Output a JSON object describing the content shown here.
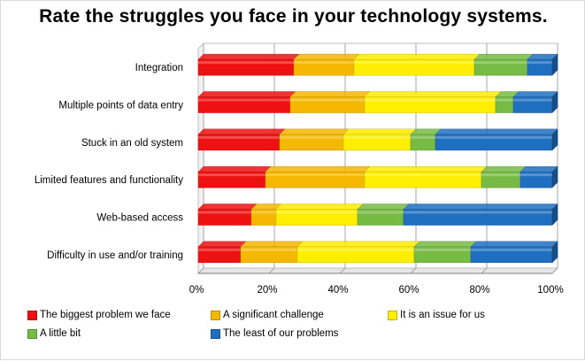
{
  "chart_data": {
    "type": "bar",
    "orientation": "horizontal",
    "stacked": "percent",
    "title": "Rate the struggles you face in your technology systems.",
    "categories": [
      "Integration",
      "Multiple points of data entry",
      "Stuck in an old system",
      "Limited features and functionality",
      "Web-based access",
      "Difficulty in use and/or training"
    ],
    "series": [
      {
        "name": "The biggest problem we face",
        "color": "#ee1111",
        "values": [
          27,
          26,
          23,
          19,
          15,
          12
        ]
      },
      {
        "name": "A significant challenge",
        "color": "#f5b800",
        "values": [
          17,
          21,
          18,
          28,
          7,
          16
        ]
      },
      {
        "name": "It is an issue for us",
        "color": "#ffee00",
        "values": [
          34,
          37,
          19,
          33,
          23,
          33
        ]
      },
      {
        "name": "A little bit",
        "color": "#77bb44",
        "values": [
          15,
          5,
          7,
          11,
          13,
          16
        ]
      },
      {
        "name": "The least of our problems",
        "color": "#1f6fc1",
        "values": [
          7,
          11,
          33,
          9,
          42,
          23
        ]
      }
    ],
    "xlim": [
      0,
      100
    ],
    "x_ticks": [
      "0%",
      "20%",
      "40%",
      "60%",
      "80%",
      "100%"
    ],
    "grid": true,
    "legend_position": "bottom"
  }
}
